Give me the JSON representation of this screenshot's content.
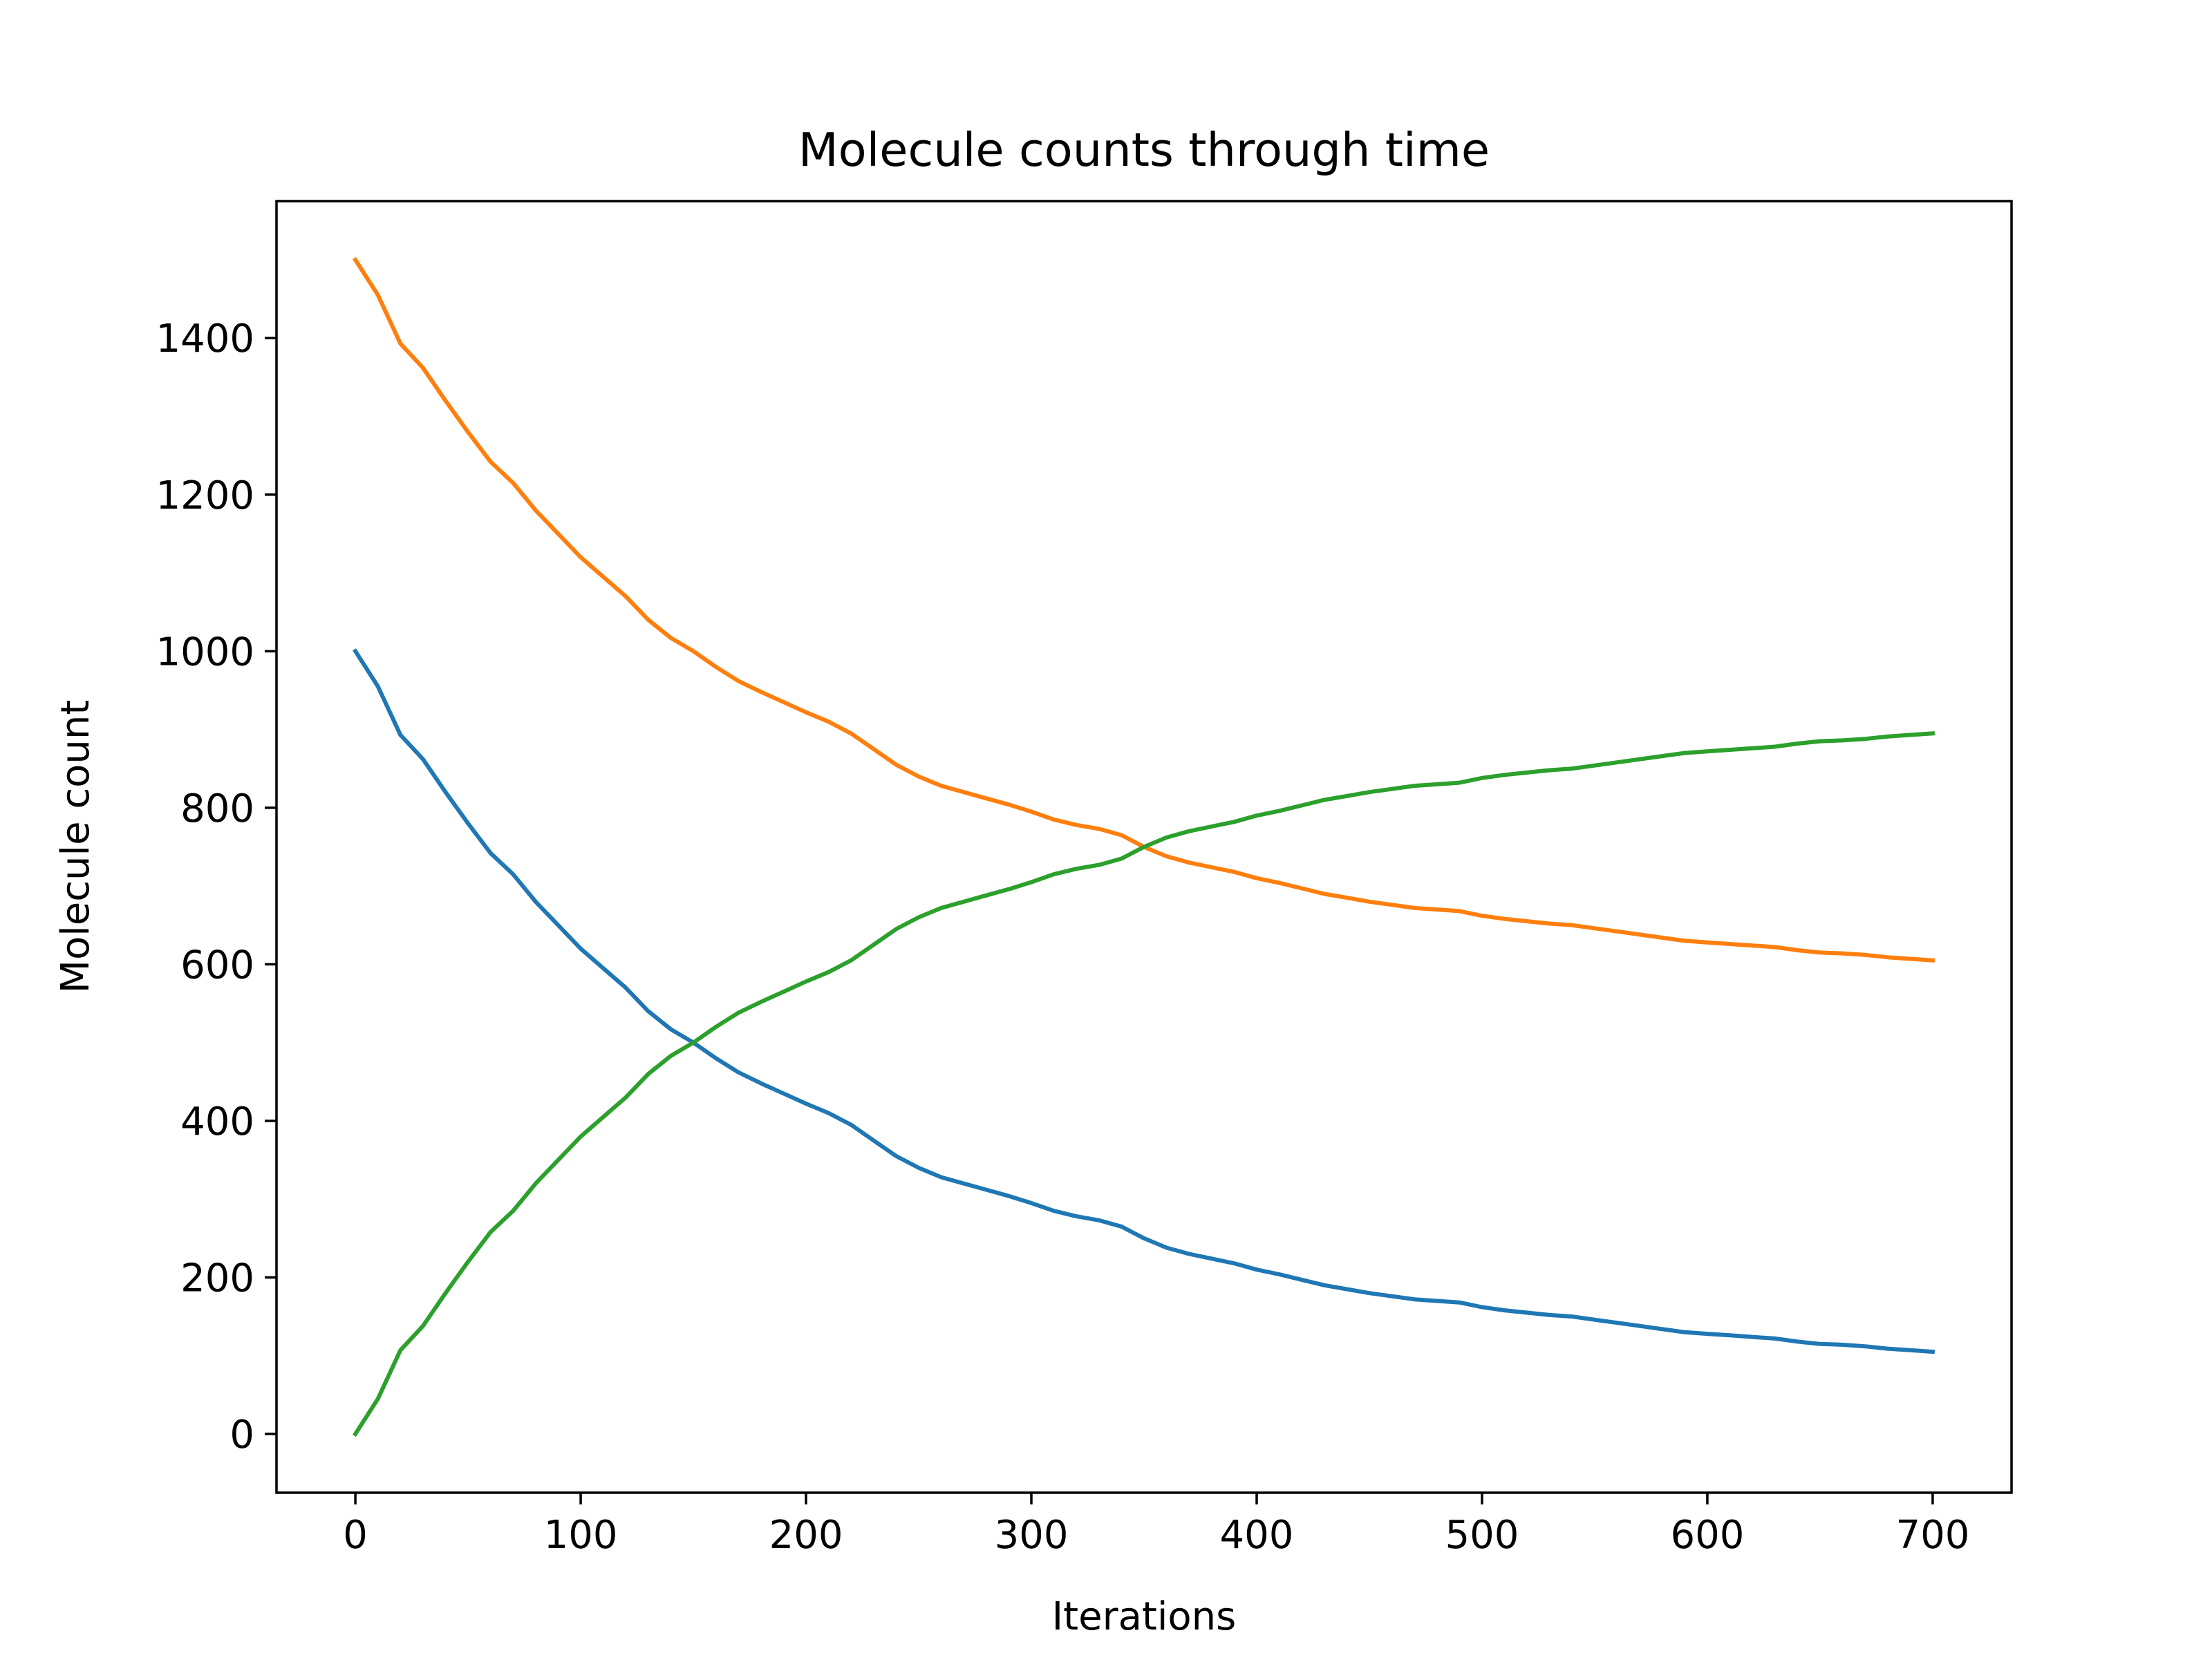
{
  "chart_data": {
    "type": "line",
    "title": "Molecule counts through time",
    "xlabel": "Iterations",
    "ylabel": "Molecule count",
    "xlim": [
      -35,
      735
    ],
    "ylim": [
      -75,
      1575
    ],
    "xticks": [
      0,
      100,
      200,
      300,
      400,
      500,
      600,
      700
    ],
    "yticks": [
      0,
      200,
      400,
      600,
      800,
      1000,
      1200,
      1400
    ],
    "grid": false,
    "legend": "none",
    "series": [
      {
        "color": "#1f77b4",
        "x": [
          0,
          10,
          20,
          30,
          40,
          50,
          60,
          70,
          80,
          90,
          100,
          110,
          120,
          130,
          140,
          150,
          160,
          170,
          180,
          190,
          200,
          210,
          220,
          230,
          240,
          250,
          260,
          270,
          280,
          290,
          300,
          310,
          320,
          330,
          340,
          350,
          360,
          370,
          380,
          390,
          400,
          410,
          420,
          430,
          440,
          450,
          460,
          470,
          480,
          490,
          500,
          510,
          520,
          530,
          540,
          550,
          560,
          570,
          580,
          590,
          600,
          610,
          620,
          630,
          640,
          650,
          660,
          670,
          680,
          690,
          700
        ],
        "values": [
          1000,
          955,
          893,
          862,
          820,
          780,
          742,
          715,
          680,
          650,
          620,
          595,
          570,
          540,
          517,
          500,
          480,
          462,
          448,
          435,
          422,
          410,
          395,
          375,
          355,
          340,
          328,
          320,
          312,
          304,
          295,
          285,
          278,
          273,
          265,
          250,
          238,
          230,
          224,
          218,
          210,
          204,
          197,
          190,
          185,
          180,
          176,
          172,
          170,
          168,
          162,
          158,
          155,
          152,
          150,
          146,
          142,
          138,
          134,
          130,
          128,
          126,
          124,
          122,
          118,
          115,
          114,
          112,
          109,
          107,
          105
        ]
      },
      {
        "color": "#ff7f0e",
        "x": [
          0,
          10,
          20,
          30,
          40,
          50,
          60,
          70,
          80,
          90,
          100,
          110,
          120,
          130,
          140,
          150,
          160,
          170,
          180,
          190,
          200,
          210,
          220,
          230,
          240,
          250,
          260,
          270,
          280,
          290,
          300,
          310,
          320,
          330,
          340,
          350,
          360,
          370,
          380,
          390,
          400,
          410,
          420,
          430,
          440,
          450,
          460,
          470,
          480,
          490,
          500,
          510,
          520,
          530,
          540,
          550,
          560,
          570,
          580,
          590,
          600,
          610,
          620,
          630,
          640,
          650,
          660,
          670,
          680,
          690,
          700
        ],
        "values": [
          1500,
          1455,
          1393,
          1362,
          1320,
          1280,
          1242,
          1215,
          1180,
          1150,
          1120,
          1095,
          1070,
          1040,
          1017,
          1000,
          980,
          962,
          948,
          935,
          922,
          910,
          895,
          875,
          855,
          840,
          828,
          820,
          812,
          804,
          795,
          785,
          778,
          773,
          765,
          750,
          738,
          730,
          724,
          718,
          710,
          704,
          697,
          690,
          685,
          680,
          676,
          672,
          670,
          668,
          662,
          658,
          655,
          652,
          650,
          646,
          642,
          638,
          634,
          630,
          628,
          626,
          624,
          622,
          618,
          615,
          614,
          612,
          609,
          607,
          605
        ]
      },
      {
        "color": "#2ca02c",
        "x": [
          0,
          10,
          20,
          30,
          40,
          50,
          60,
          70,
          80,
          90,
          100,
          110,
          120,
          130,
          140,
          150,
          160,
          170,
          180,
          190,
          200,
          210,
          220,
          230,
          240,
          250,
          260,
          270,
          280,
          290,
          300,
          310,
          320,
          330,
          340,
          350,
          360,
          370,
          380,
          390,
          400,
          410,
          420,
          430,
          440,
          450,
          460,
          470,
          480,
          490,
          500,
          510,
          520,
          530,
          540,
          550,
          560,
          570,
          580,
          590,
          600,
          610,
          620,
          630,
          640,
          650,
          660,
          670,
          680,
          690,
          700
        ],
        "values": [
          0,
          45,
          107,
          138,
          180,
          220,
          258,
          285,
          320,
          350,
          380,
          405,
          430,
          460,
          483,
          500,
          520,
          538,
          552,
          565,
          578,
          590,
          605,
          625,
          645,
          660,
          672,
          680,
          688,
          696,
          705,
          715,
          722,
          727,
          735,
          750,
          762,
          770,
          776,
          782,
          790,
          796,
          803,
          810,
          815,
          820,
          824,
          828,
          830,
          832,
          838,
          842,
          845,
          848,
          850,
          854,
          858,
          862,
          866,
          870,
          872,
          874,
          876,
          878,
          882,
          885,
          886,
          888,
          891,
          893,
          895
        ]
      }
    ]
  }
}
